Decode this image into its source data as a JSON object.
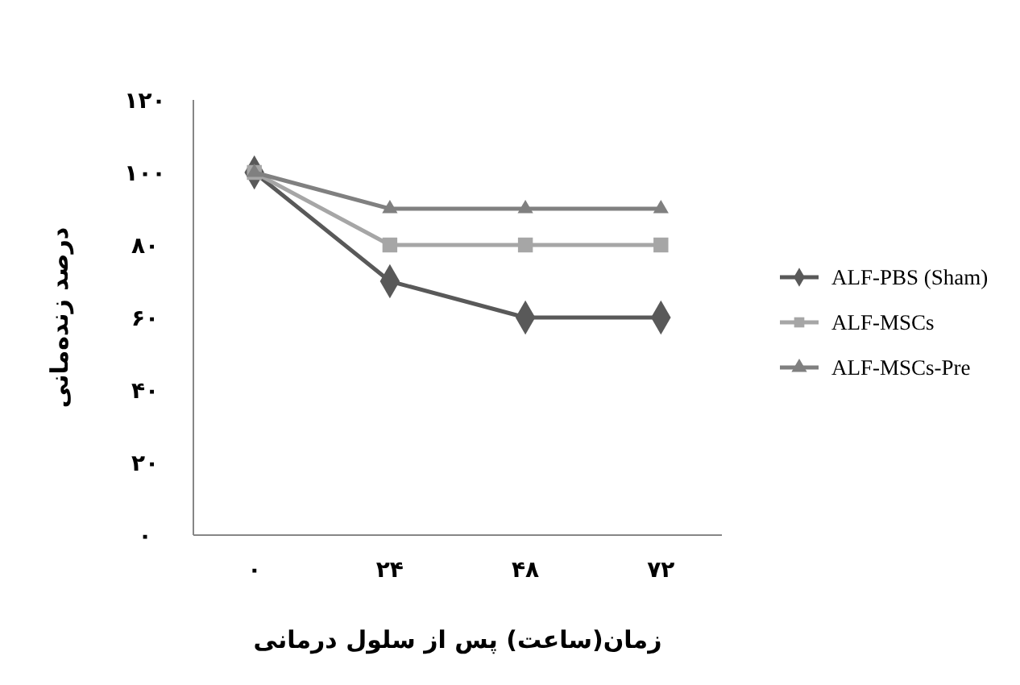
{
  "chart_data": {
    "type": "line",
    "xlabel": "زمان(ساعت) پس از سلول درمانی",
    "ylabel": "درصد زنده‌مانی",
    "categories": [
      "۰",
      "۲۴",
      "۴۸",
      "۷۲"
    ],
    "series": [
      {
        "name": "ALF-PBS (Sham)",
        "color": "#595959",
        "marker": "diamond",
        "values": [
          100,
          70,
          60,
          60
        ]
      },
      {
        "name": "ALF-MSCs",
        "color": "#a6a6a6",
        "marker": "square",
        "values": [
          100,
          80,
          80,
          80
        ]
      },
      {
        "name": "ALF-MSCs-Pre",
        "color": "#808080",
        "marker": "triangle",
        "values": [
          100,
          90,
          90,
          90
        ]
      }
    ],
    "ylim": [
      0,
      120
    ],
    "yticks": [
      {
        "value": 0,
        "label": "۰"
      },
      {
        "value": 20,
        "label": "۲۰"
      },
      {
        "value": 40,
        "label": "۴۰"
      },
      {
        "value": 60,
        "label": "۶۰"
      },
      {
        "value": 80,
        "label": "۸۰"
      },
      {
        "value": 100,
        "label": "۱۰۰"
      },
      {
        "value": 120,
        "label": "۱۲۰"
      }
    ],
    "grid": false,
    "legend": "right"
  }
}
